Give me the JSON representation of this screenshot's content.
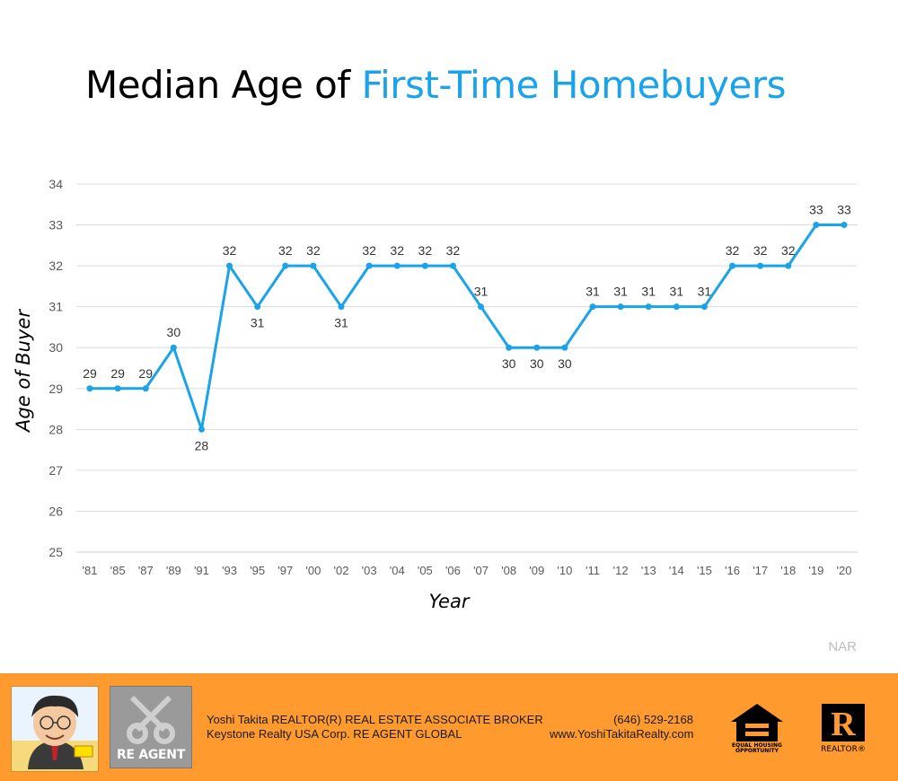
{
  "title_part1": "Median Age of ",
  "title_part2": "First-Time Homebuyers",
  "source": "NAR",
  "footer": {
    "agent_line1": "Yoshi Takita REALTOR(R) REAL ESTATE ASSOCIATE BROKER",
    "agent_line2": "Keystone Realty USA Corp.  RE AGENT GLOBAL",
    "phone": "(646) 529-2168",
    "website": "www.YoshiTakitaRealty.com",
    "logo_text": "RE AGENT",
    "eho_text_1": "EQUAL HOUSING",
    "eho_text_2": "OPPORTUNITY",
    "realtor_text": "REALTOR®"
  },
  "colors": {
    "accent": "#1aa3e8",
    "footer": "#ff9a2e"
  },
  "chart_data": {
    "type": "line",
    "categories": [
      "'81",
      "'85",
      "'87",
      "'89",
      "'91",
      "'93",
      "'95",
      "'97",
      "'00",
      "'02",
      "'03",
      "'04",
      "'05",
      "'06",
      "'07",
      "'08",
      "'09",
      "'10",
      "'11",
      "'12",
      "'13",
      "'14",
      "'15",
      "'16",
      "'17",
      "'18",
      "'19",
      "'20"
    ],
    "values": [
      29,
      29,
      29,
      30,
      28,
      32,
      31,
      32,
      32,
      31,
      32,
      32,
      32,
      32,
      31,
      30,
      30,
      30,
      31,
      31,
      31,
      31,
      31,
      32,
      32,
      32,
      33,
      33
    ],
    "label_position": [
      "above",
      "above",
      "above",
      "above",
      "below",
      "above",
      "below",
      "above",
      "above",
      "below",
      "above",
      "above",
      "above",
      "above",
      "above",
      "below",
      "below",
      "below",
      "above",
      "above",
      "above",
      "above",
      "above",
      "above",
      "above",
      "above",
      "above",
      "above"
    ],
    "xlabel": "Year",
    "ylabel": "Age of Buyer",
    "ylim": [
      25,
      34
    ],
    "yticks": [
      25,
      26,
      27,
      28,
      29,
      30,
      31,
      32,
      33,
      34
    ],
    "grid": true,
    "line_color": "#1aa3e8"
  }
}
